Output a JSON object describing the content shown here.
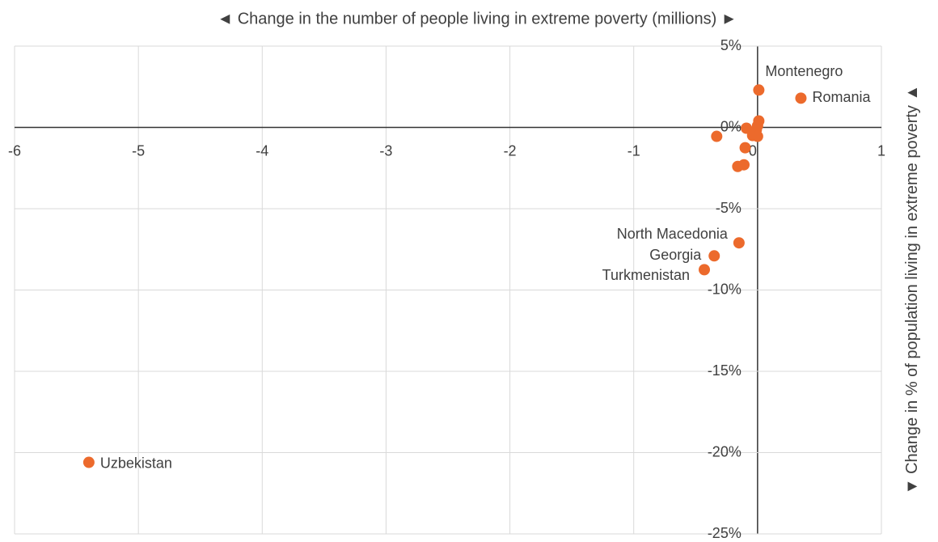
{
  "chart_data": {
    "type": "scatter",
    "x_label": "◄ Change in the number of people living in extreme poverty (millions) ►",
    "y_label": "▼ Change in % of population living in extreme poverty ▲",
    "series": [
      {
        "color": "#ec6a2c",
        "x": [
          0.01,
          0.35,
          0.01,
          0.0,
          -0.09,
          -0.01,
          -0.04,
          0.0,
          -0.33,
          -0.1,
          -0.16,
          -0.11,
          -0.15,
          -0.35,
          -0.43,
          -5.4
        ],
        "values": [
          2.3,
          1.8,
          0.4,
          0.1,
          -0.05,
          -0.15,
          -0.5,
          -0.55,
          -0.55,
          -1.25,
          -2.4,
          -2.3,
          -7.1,
          -7.9,
          -8.75,
          -20.6
        ],
        "labels": [
          "Montenegro",
          "Romania",
          null,
          null,
          null,
          null,
          null,
          null,
          null,
          null,
          null,
          null,
          "North Macedonia",
          "Georgia",
          "Turkmenistan",
          "Uzbekistan"
        ]
      }
    ],
    "xlim": [
      -6,
      1
    ],
    "xticks": [
      -6,
      -5,
      -4,
      -3,
      -2,
      -1,
      0,
      1
    ],
    "ylim": [
      -25,
      5
    ],
    "yticks": [
      {
        "value": 5,
        "label": "5%"
      },
      {
        "value": 0,
        "label": "0%"
      },
      {
        "value": -5,
        "label": "-5%"
      },
      {
        "value": -10,
        "label": "-10%"
      },
      {
        "value": -15,
        "label": "-15%"
      },
      {
        "value": -20,
        "label": "-20%"
      },
      {
        "value": -25,
        "label": "-25%"
      }
    ],
    "grid": true
  }
}
